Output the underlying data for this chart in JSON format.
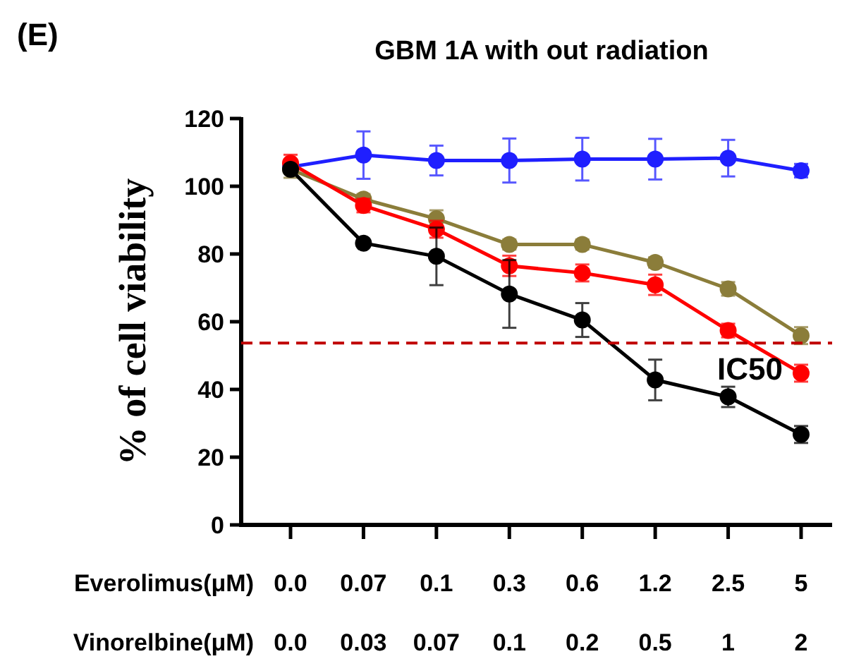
{
  "chart_data": {
    "type": "line",
    "title": "GBM 1A with out radiation",
    "ylabel": "% of cell viability",
    "xlabel": "Everolimus(μM)\nVinorelbine(μM)",
    "annotations": [
      "(E)"
    ],
    "categories": [
      "0.0\n0.0",
      "0.07\n0.03",
      "0.1\n0.07",
      "0.3\n0.1",
      "0.6\n0.2",
      "1.2\n0.5",
      "2.5\n1",
      "5\n2"
    ],
    "ylim": [
      0,
      120
    ],
    "yticks": [
      0,
      20,
      40,
      60,
      80,
      100,
      120
    ],
    "marker": "circle",
    "line_style": "solid",
    "ref_lines": [
      {
        "axis": "y",
        "value": 53.7,
        "label": "IC50",
        "color": "#c00000",
        "line_style": "dashed"
      }
    ],
    "series": [
      {
        "color": "#1f1fff",
        "values": [
          105.7,
          109.2,
          107.6,
          107.6,
          108,
          108,
          108.3,
          104.6
        ],
        "errors": [
          null,
          7,
          4.4,
          6.5,
          6.3,
          6,
          5.4,
          2
        ]
      },
      {
        "color": "#8b7d3a",
        "values": [
          105,
          96.2,
          90.4,
          82.8,
          82.8,
          77.5,
          69.7,
          55.9
        ],
        "errors": [
          2.5,
          1.5,
          2.5,
          1.5,
          1.5,
          1.5,
          2,
          2.5
        ]
      },
      {
        "color": "#ff0000",
        "values": [
          106.8,
          94.3,
          87.3,
          76.5,
          74.4,
          70.9,
          57.4,
          44.8
        ],
        "errors": [
          2.5,
          2,
          2.5,
          3,
          2.5,
          3,
          2,
          2.5
        ]
      },
      {
        "color": "#000000",
        "values": [
          105,
          83.2,
          79.3,
          68.2,
          60.5,
          42.8,
          37.8,
          26.7
        ],
        "errors": [
          null,
          null,
          8.5,
          10,
          5,
          6,
          3,
          2.5
        ]
      }
    ]
  }
}
